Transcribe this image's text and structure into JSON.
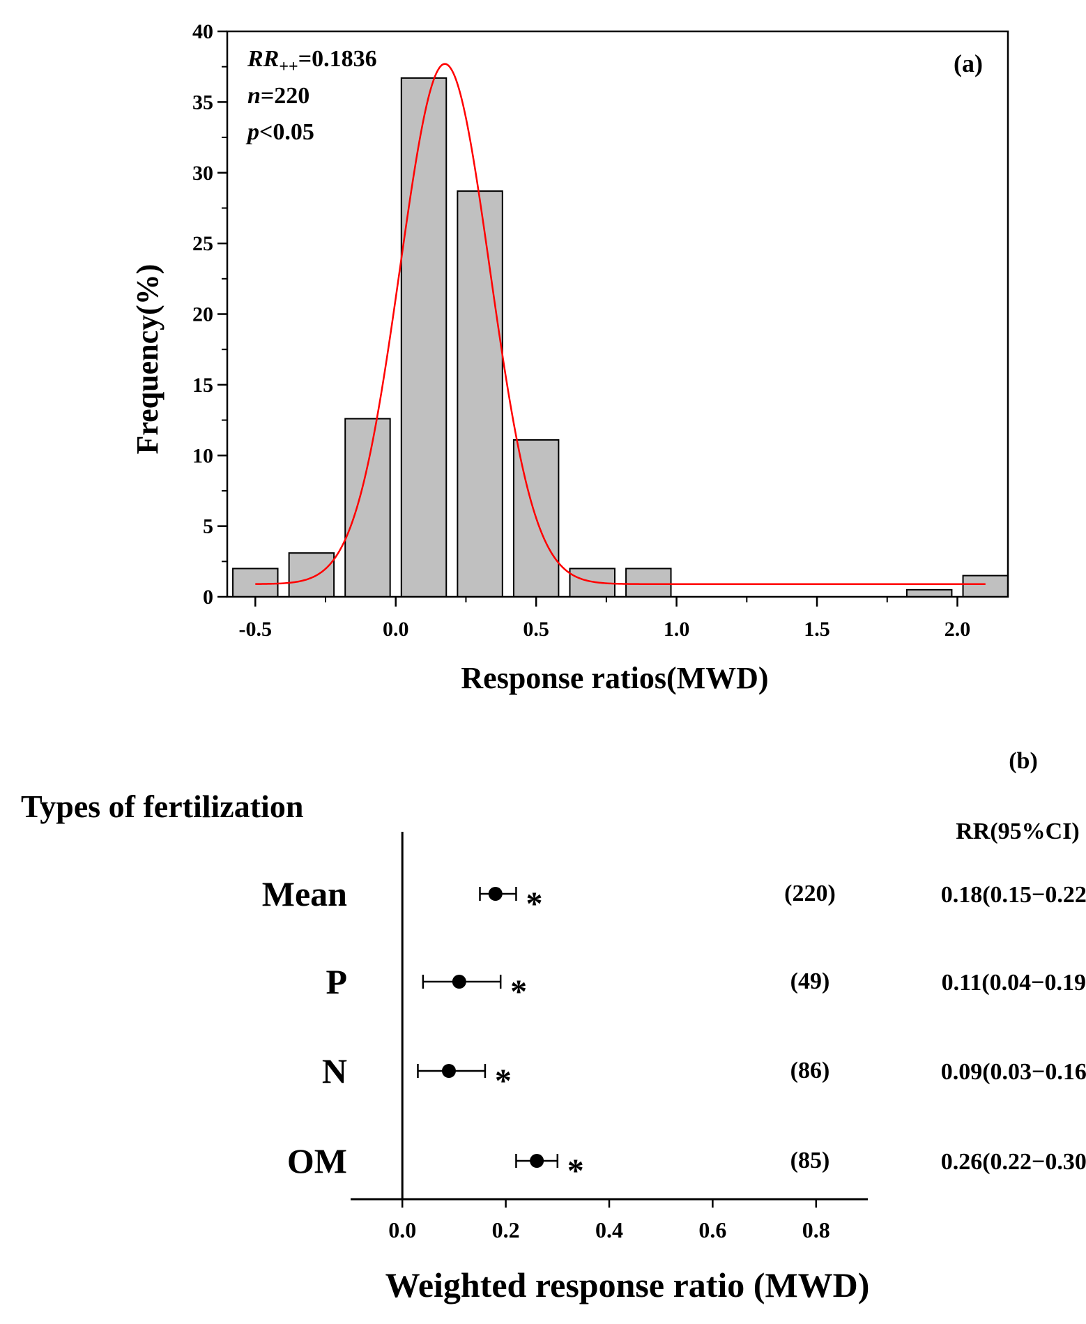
{
  "chart_data": [
    {
      "type": "bar",
      "panel_label": "(a)",
      "xlabel": "Response ratios(MWD)",
      "ylabel": "Frequency(%)",
      "xlim": [
        -0.6,
        2.18
      ],
      "ylim": [
        0,
        40
      ],
      "xticks": [
        -0.5,
        0.0,
        0.5,
        1.0,
        1.5,
        2.0
      ],
      "xtick_labels": [
        "-0.5",
        "0.0",
        "0.5",
        "1.0",
        "1.5",
        "2.0"
      ],
      "yticks": [
        0,
        5,
        10,
        15,
        20,
        25,
        30,
        35,
        40
      ],
      "ytick_labels": [
        "0",
        "5",
        "10",
        "15",
        "20",
        "25",
        "30",
        "35",
        "40"
      ],
      "bars": [
        {
          "x": -0.5,
          "value": 2.0
        },
        {
          "x": -0.3,
          "value": 3.1
        },
        {
          "x": -0.1,
          "value": 12.6
        },
        {
          "x": 0.1,
          "value": 36.7
        },
        {
          "x": 0.3,
          "value": 28.7
        },
        {
          "x": 0.5,
          "value": 11.1
        },
        {
          "x": 0.7,
          "value": 2.0
        },
        {
          "x": 0.9,
          "value": 2.0
        },
        {
          "x": 1.9,
          "value": 0.5
        },
        {
          "x": 2.1,
          "value": 1.5
        }
      ],
      "bar_width": 0.16,
      "fit_curve": {
        "type": "gaussian",
        "center": 0.175,
        "amplitude": 36.8,
        "sigma": 0.16,
        "baseline": 0.9,
        "x_range": [
          -0.5,
          2.1
        ]
      },
      "annotations": [
        {
          "main": "RR",
          "sub": "++",
          "rest": "=0.1836"
        },
        {
          "main": "n",
          "rest": "=220"
        },
        {
          "main": "p",
          "rest": "<0.05"
        }
      ],
      "grid": false,
      "colors": {
        "bar_fill": "#c0c0c0",
        "bar_edge": "#000000",
        "curve": "#ff0000"
      }
    },
    {
      "type": "forest",
      "panel_label": "(b)",
      "xlabel": "Weighted response ratio (MWD)",
      "row_header": "Types of fertilization",
      "ci_header": "RR(95%CI)",
      "xlim": [
        -0.1,
        0.9
      ],
      "xticks": [
        0.0,
        0.2,
        0.4,
        0.6,
        0.8
      ],
      "xtick_labels": [
        "0.0",
        "0.2",
        "0.4",
        "0.6",
        "0.8"
      ],
      "rows": [
        {
          "label": "Mean",
          "estimate": 0.18,
          "lower": 0.15,
          "upper": 0.22,
          "n": "(220)",
          "ci_text": "0.18(0.15−0.22)",
          "sig": "*"
        },
        {
          "label": "P",
          "estimate": 0.11,
          "lower": 0.04,
          "upper": 0.19,
          "n": "(49)",
          "ci_text": "0.11(0.04−0.19)",
          "sig": "*"
        },
        {
          "label": "N",
          "estimate": 0.09,
          "lower": 0.03,
          "upper": 0.16,
          "n": "(86)",
          "ci_text": "0.09(0.03−0.16)",
          "sig": "*"
        },
        {
          "label": "OM",
          "estimate": 0.26,
          "lower": 0.22,
          "upper": 0.3,
          "n": "(85)",
          "ci_text": "0.26(0.22−0.30)",
          "sig": "*"
        }
      ]
    }
  ]
}
